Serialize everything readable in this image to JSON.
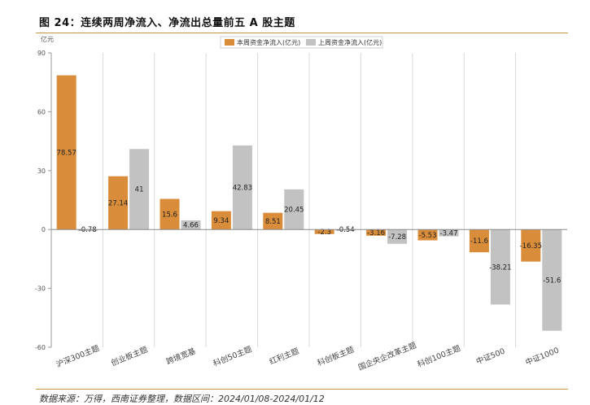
{
  "title": "图 24：连续两周净流入、净流出总量前五 A 股主题",
  "source": "数据来源：万得，西南证券整理，数据区间：2024/01/08-2024/01/12",
  "colors": {
    "this_week": "#d98c3a",
    "last_week": "#c2c2c2",
    "rule": "#c8963c"
  },
  "chart_data": {
    "type": "bar",
    "ylabel": "亿元",
    "ylim": [
      -60,
      90
    ],
    "yticks": [
      90,
      60,
      30,
      0,
      -30,
      -60
    ],
    "legend_position": "top-center",
    "grid": "vertical-separators",
    "categories": [
      "沪深300主题",
      "创业板主题",
      "跨境宽基",
      "科创50主题",
      "红利主题",
      "科创板主题",
      "国企央企改革主题",
      "科创100主题",
      "中证500",
      "中证1000"
    ],
    "series": [
      {
        "name": "本周资金净流入(亿元)",
        "values": [
          78.57,
          27.14,
          15.6,
          9.34,
          8.51,
          -2.3,
          -3.16,
          -5.53,
          -11.6,
          -16.35
        ],
        "labels": [
          "78.57",
          "27.14",
          "15.6",
          "9.34",
          "8.51",
          "-2.3",
          "-3.16",
          "-5.53",
          "-11.6",
          "-16.35"
        ]
      },
      {
        "name": "上周资金净流入(亿元)",
        "values": [
          -0.78,
          41,
          4.66,
          42.83,
          20.45,
          -0.54,
          -7.28,
          -3.47,
          -38.21,
          -51.6
        ],
        "labels": [
          "-0.78",
          "41",
          "4.66",
          "42.83",
          "20.45",
          "-0.54",
          "-7.28",
          "-3.47",
          "-38.21",
          "-51.6"
        ]
      }
    ]
  }
}
